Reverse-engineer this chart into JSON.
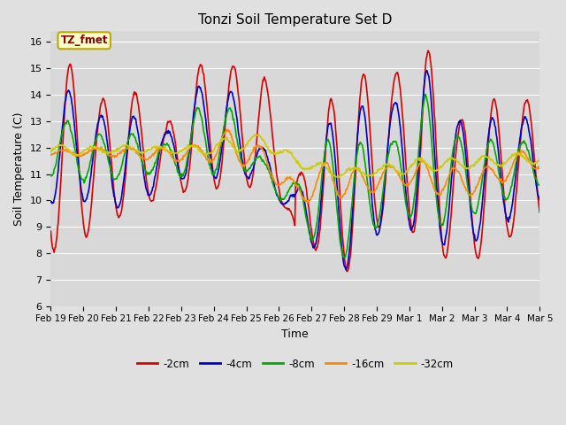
{
  "title": "Tonzi Soil Temperature Set D",
  "xlabel": "Time",
  "ylabel": "Soil Temperature (C)",
  "ylim": [
    6.0,
    16.4
  ],
  "yticks": [
    6.0,
    7.0,
    8.0,
    9.0,
    10.0,
    11.0,
    12.0,
    13.0,
    14.0,
    15.0,
    16.0
  ],
  "background_color": "#e0e0e0",
  "plot_bg_color": "#d8d8d8",
  "series_colors": {
    "-2cm": "#dd0000",
    "-4cm": "#0000cc",
    "-8cm": "#00aa00",
    "-16cm": "#ff8800",
    "-32cm": "#cccc00"
  },
  "legend_label": "TZ_fmet",
  "legend_bg": "#ffffcc",
  "legend_border": "#bbaa00",
  "x_tick_labels": [
    "Feb 19",
    "Feb 20",
    "Feb 21",
    "Feb 22",
    "Feb 23",
    "Feb 24",
    "Feb 25",
    "Feb 26",
    "Feb 27",
    "Feb 28",
    "Feb 29",
    "Mar 1",
    "Mar 2",
    "Mar 3",
    "Mar 4",
    "Mar 5"
  ],
  "line_width": 1.2
}
